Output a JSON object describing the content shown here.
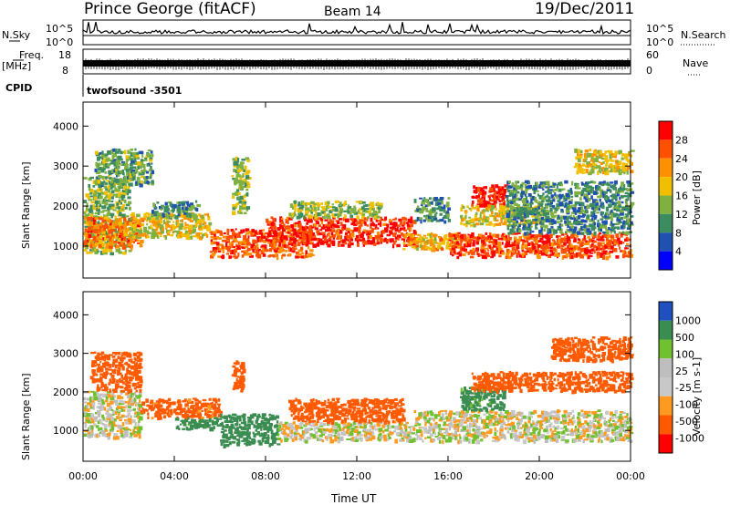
{
  "header": {
    "station": "Prince George (fitACF)",
    "beam": "Beam 14",
    "date": "19/Dec/2011"
  },
  "strips": {
    "nsky_label": "N.Sky",
    "nsearch_label": "N.Search",
    "nsky_ticks": [
      "10^5",
      "10^0"
    ],
    "nsearch_ticks": [
      "10^5",
      "10^0"
    ],
    "freq_label": "Freq.",
    "freq_unit": "[MHz]",
    "freq_ticks": [
      "18",
      "8"
    ],
    "nave_label": "Nave",
    "nave_ticks": [
      "60",
      "0"
    ],
    "cpid_label": "CPID",
    "cpid_value": "twofsound -3501"
  },
  "panels": {
    "power_ylabel": "Slant Range [km]",
    "velocity_ylabel": "Slant Range [km]",
    "xlabel": "Time UT",
    "power_cbar_label": "Power [dB]",
    "velocity_cbar_label": "Velocity [m s-1]"
  },
  "chart_data": [
    {
      "type": "heatmap",
      "name": "power",
      "x_range": [
        "00:00",
        "24:00"
      ],
      "x_ticks": [
        "00:00",
        "04:00",
        "08:00",
        "12:00",
        "16:00",
        "20:00",
        "00:00"
      ],
      "ylim": [
        200,
        4600
      ],
      "y_ticks": [
        1000,
        2000,
        3000,
        4000
      ],
      "colorbar_ticks": [
        28,
        24,
        20,
        16,
        12,
        8,
        4
      ],
      "colorbar_range": [
        0,
        32
      ],
      "colors": [
        "#0000ff",
        "#2050b0",
        "#3c8c60",
        "#80b040",
        "#f0c000",
        "#ff9000",
        "#ff5000",
        "#ff0000"
      ],
      "regions": [
        {
          "t0": 0.0,
          "t1": 2.0,
          "r0": 800,
          "r1": 2700,
          "value": 14
        },
        {
          "t0": 0.0,
          "t1": 2.5,
          "r0": 950,
          "r1": 1700,
          "value": 24
        },
        {
          "t0": 0.5,
          "t1": 3.0,
          "r0": 2500,
          "r1": 3400,
          "value": 12
        },
        {
          "t0": 2.0,
          "t1": 5.5,
          "r0": 1200,
          "r1": 1800,
          "value": 18
        },
        {
          "t0": 3.0,
          "t1": 5.0,
          "r0": 1700,
          "r1": 2100,
          "value": 10
        },
        {
          "t0": 5.5,
          "t1": 10.0,
          "r0": 700,
          "r1": 1400,
          "value": 26
        },
        {
          "t0": 6.5,
          "t1": 7.2,
          "r0": 1800,
          "r1": 3200,
          "value": 14
        },
        {
          "t0": 8.0,
          "t1": 14.5,
          "r0": 1000,
          "r1": 1700,
          "value": 28
        },
        {
          "t0": 9.0,
          "t1": 13.0,
          "r0": 1700,
          "r1": 2100,
          "value": 14
        },
        {
          "t0": 14.0,
          "t1": 16.5,
          "r0": 900,
          "r1": 1300,
          "value": 20
        },
        {
          "t0": 14.5,
          "t1": 16.0,
          "r0": 1600,
          "r1": 2200,
          "value": 10
        },
        {
          "t0": 16.0,
          "t1": 24.0,
          "r0": 700,
          "r1": 1300,
          "value": 27
        },
        {
          "t0": 17.0,
          "t1": 18.5,
          "r0": 2000,
          "r1": 2500,
          "value": 29
        },
        {
          "t0": 16.5,
          "t1": 20.0,
          "r0": 1500,
          "r1": 2000,
          "value": 18
        },
        {
          "t0": 18.5,
          "t1": 24.0,
          "r0": 1300,
          "r1": 2600,
          "value": 10
        },
        {
          "t0": 21.5,
          "t1": 24.0,
          "r0": 2800,
          "r1": 3400,
          "value": 17
        }
      ]
    },
    {
      "type": "heatmap",
      "name": "velocity",
      "x_range": [
        "00:00",
        "24:00"
      ],
      "x_ticks": [
        "00:00",
        "04:00",
        "08:00",
        "12:00",
        "16:00",
        "20:00",
        "00:00"
      ],
      "ylim": [
        200,
        4600
      ],
      "y_ticks": [
        1000,
        2000,
        3000,
        4000
      ],
      "colorbar_ticks": [
        1000,
        500,
        100,
        25,
        -25,
        -100,
        -500,
        -1000
      ],
      "colors": [
        "#ff0000",
        "#ff5a00",
        "#ff9a20",
        "#c8c8c8",
        "#bebebe",
        "#70c030",
        "#3a8c50",
        "#2050c0"
      ],
      "regions": [
        {
          "t0": 0.0,
          "t1": 2.5,
          "r0": 800,
          "r1": 2000,
          "value": 0
        },
        {
          "t0": 0.3,
          "t1": 2.5,
          "r0": 2000,
          "r1": 3000,
          "value": -300
        },
        {
          "t0": 2.5,
          "t1": 6.0,
          "r0": 1300,
          "r1": 1800,
          "value": -150
        },
        {
          "t0": 4.0,
          "t1": 6.0,
          "r0": 1000,
          "r1": 1300,
          "value": 150
        },
        {
          "t0": 6.0,
          "t1": 8.5,
          "r0": 600,
          "r1": 1400,
          "value": 400
        },
        {
          "t0": 6.5,
          "t1": 7.0,
          "r0": 2000,
          "r1": 2800,
          "value": -400
        },
        {
          "t0": 8.5,
          "t1": 14.5,
          "r0": 700,
          "r1": 1200,
          "value": 0
        },
        {
          "t0": 9.0,
          "t1": 14.0,
          "r0": 1200,
          "r1": 1800,
          "value": -400
        },
        {
          "t0": 14.5,
          "t1": 24.0,
          "r0": 700,
          "r1": 1500,
          "value": 0
        },
        {
          "t0": 16.5,
          "t1": 18.5,
          "r0": 1500,
          "r1": 2100,
          "value": 150
        },
        {
          "t0": 17.0,
          "t1": 24.0,
          "r0": 2000,
          "r1": 2500,
          "value": -350
        },
        {
          "t0": 20.5,
          "t1": 24.0,
          "r0": 2800,
          "r1": 3400,
          "value": -400
        }
      ]
    }
  ]
}
